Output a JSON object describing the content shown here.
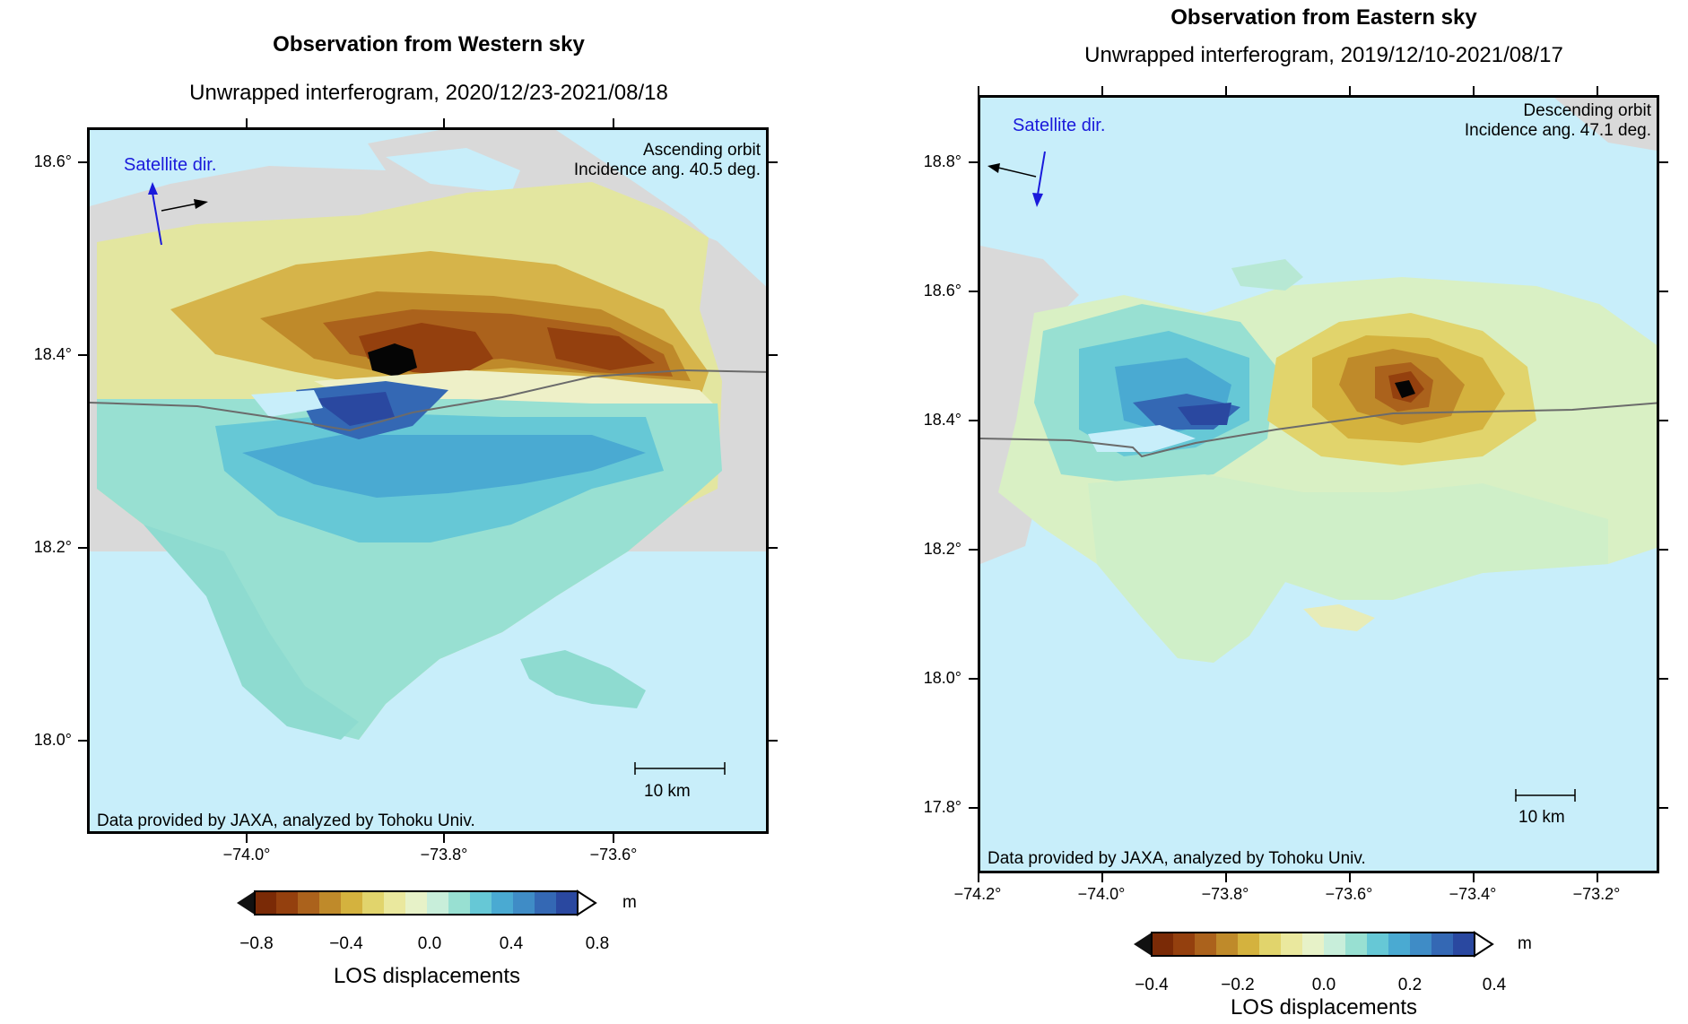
{
  "left_panel": {
    "title": "Observation from Western sky",
    "subtitle": "Unwrapped interferogram, 2020/12/23-2021/08/18",
    "orbit_line1": "Ascending orbit",
    "orbit_line2": "Incidence ang. 40.5 deg.",
    "satellite_label": "Satellite dir.",
    "scale_label": "10 km",
    "credit": "Data provided by JAXA, analyzed by Tohoku Univ.",
    "lat_ticks": [
      "18.6°",
      "18.4°",
      "18.2°",
      "18.0°"
    ],
    "lon_ticks": [
      "−74.0°",
      "−73.8°",
      "−73.6°"
    ],
    "colorbar": {
      "ticks": [
        "−0.8",
        "−0.4",
        "0.0",
        "0.4",
        "0.8"
      ],
      "unit": "m",
      "label": "LOS displacements"
    }
  },
  "right_panel": {
    "title": "Observation from Eastern sky",
    "subtitle": "Unwrapped interferogram, 2019/12/10-2021/08/17",
    "orbit_line1": "Descending orbit",
    "orbit_line2": "Incidence ang. 47.1 deg.",
    "satellite_label": "Satellite dir.",
    "scale_label": "10 km",
    "credit": "Data provided by JAXA, analyzed by Tohoku Univ.",
    "lat_ticks": [
      "18.8°",
      "18.6°",
      "18.4°",
      "18.2°",
      "18.0°",
      "17.8°"
    ],
    "lon_ticks": [
      "−74.2°",
      "−74.0°",
      "−73.8°",
      "−73.6°",
      "−73.4°",
      "−73.2°"
    ],
    "colorbar": {
      "ticks": [
        "−0.4",
        "−0.2",
        "0.0",
        "0.2",
        "0.4"
      ],
      "unit": "m",
      "label": "LOS displacements"
    }
  },
  "palette": [
    "#7a2a06",
    "#94400e",
    "#ab621c",
    "#bf8a2a",
    "#d4b23e",
    "#e1d46c",
    "#eae89e",
    "#e7f2c8",
    "#c8eeda",
    "#98e0d2",
    "#66c8d6",
    "#4aaad2",
    "#3f8cc6",
    "#3468b4",
    "#2a48a0"
  ]
}
